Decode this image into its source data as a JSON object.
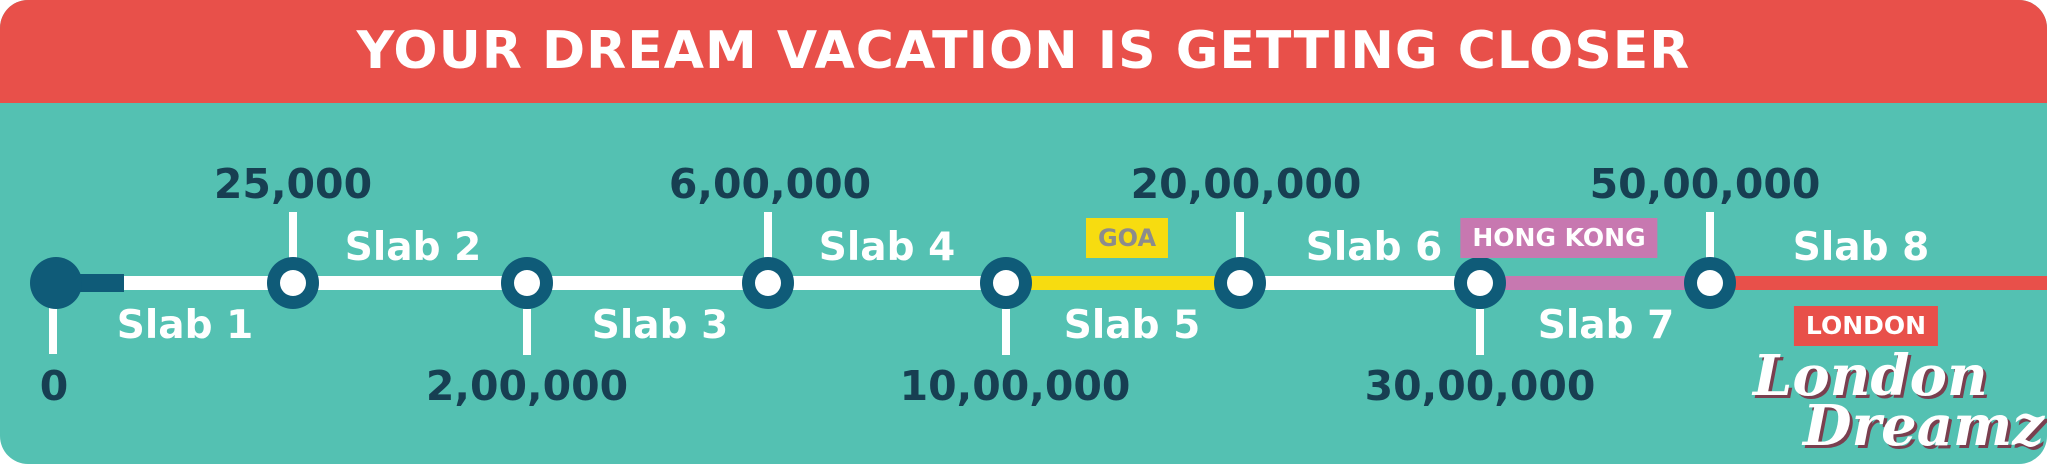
{
  "title": "YOUR DREAM VACATION IS GETTING CLOSER",
  "colors": {
    "header": "#e8504a",
    "background": "#54c1b2",
    "track": "#ffffff",
    "node": "#0f5b78",
    "goa": "#f7dc10",
    "hong_kong": "#c778b0",
    "london": "#e8504a",
    "amount_text": "#173f52"
  },
  "milestones": [
    "0",
    "25,000",
    "2,00,000",
    "6,00,000",
    "10,00,000",
    "20,00,000",
    "30,00,000",
    "50,00,000"
  ],
  "slabs": [
    "Slab 1",
    "Slab 2",
    "Slab 3",
    "Slab 4",
    "Slab 5",
    "Slab 6",
    "Slab 7",
    "Slab 8"
  ],
  "destinations": {
    "goa": "GOA",
    "hong_kong": "HONG KONG",
    "london": "LONDON"
  },
  "logo": {
    "line1": "London",
    "line2": "Dreamz"
  }
}
